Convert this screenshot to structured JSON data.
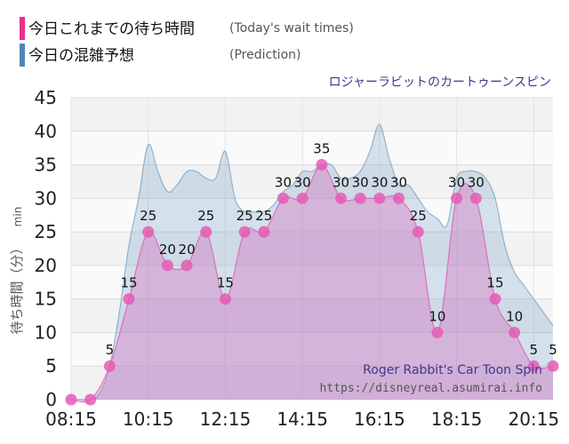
{
  "legend": {
    "today": {
      "label": "今日これまでの待ち時間",
      "sub": "(Today's wait times)",
      "color": "#ee2c8c"
    },
    "prediction": {
      "label": "今日の混雑予想",
      "sub": "(Prediction)",
      "color": "#4f86b8"
    }
  },
  "chart_data": {
    "type": "area",
    "title": "ロジャーラビットのカートゥーンスピン",
    "ylabel": "待ち時間（分）",
    "yunit": "min",
    "ylim": [
      0,
      45
    ],
    "yticks": [
      0,
      5,
      10,
      15,
      20,
      25,
      30,
      35,
      40,
      45
    ],
    "xtick_labels": [
      "08:15",
      "10:15",
      "12:15",
      "14:15",
      "16:15",
      "18:15",
      "20:15"
    ],
    "x_range": [
      "08:15",
      "20:45"
    ],
    "grid": true,
    "watermark": {
      "line1": "Roger Rabbit's Car Toon Spin",
      "line2": "https://disneyreal.asumirai.info"
    },
    "series": [
      {
        "name": "今日これまでの待ち時間",
        "color": "#ee2c8c",
        "x": [
          "08:15",
          "08:45",
          "09:15",
          "09:45",
          "10:15",
          "10:45",
          "11:15",
          "11:45",
          "12:15",
          "12:45",
          "13:15",
          "13:45",
          "14:15",
          "14:45",
          "15:15",
          "15:45",
          "16:15",
          "16:45",
          "17:15",
          "17:45",
          "18:15",
          "18:45",
          "19:15",
          "19:45",
          "20:15",
          "20:45"
        ],
        "values": [
          0,
          0,
          5,
          15,
          25,
          20,
          20,
          25,
          15,
          25,
          25,
          30,
          30,
          35,
          30,
          30,
          30,
          30,
          25,
          10,
          30,
          30,
          15,
          10,
          5,
          5
        ],
        "labels": [
          "",
          "",
          "5",
          "15",
          "25",
          "20",
          "20",
          "25",
          "15",
          "25",
          "25",
          "30",
          "30",
          "35",
          "30",
          "30",
          "30",
          "30",
          "25",
          "10",
          "30",
          "30",
          "15",
          "10",
          "5",
          "5"
        ]
      },
      {
        "name": "今日の混雑予想",
        "color": "#4f86b8",
        "x": [
          "08:15",
          "08:30",
          "08:45",
          "09:00",
          "09:15",
          "09:30",
          "09:45",
          "10:00",
          "10:15",
          "10:30",
          "10:45",
          "11:00",
          "11:15",
          "11:30",
          "11:45",
          "12:00",
          "12:15",
          "12:30",
          "12:45",
          "13:00",
          "13:15",
          "13:30",
          "13:45",
          "14:00",
          "14:15",
          "14:30",
          "14:45",
          "15:00",
          "15:15",
          "15:30",
          "15:45",
          "16:00",
          "16:15",
          "16:30",
          "16:45",
          "17:00",
          "17:15",
          "17:30",
          "17:45",
          "18:00",
          "18:15",
          "18:30",
          "18:45",
          "19:00",
          "19:15",
          "19:30",
          "19:45",
          "20:00",
          "20:15",
          "20:30",
          "20:45"
        ],
        "values": [
          0,
          0,
          0,
          1,
          5,
          13,
          23,
          30,
          38,
          34,
          31,
          32,
          34,
          34,
          33,
          33,
          37,
          30,
          28,
          28,
          28,
          29,
          31,
          32,
          34,
          34,
          35,
          35,
          33,
          33,
          34,
          37,
          41,
          36,
          32,
          32,
          30,
          28,
          27,
          26,
          33,
          34,
          34,
          33,
          30,
          23,
          19,
          17,
          15,
          13,
          11
        ]
      }
    ]
  }
}
